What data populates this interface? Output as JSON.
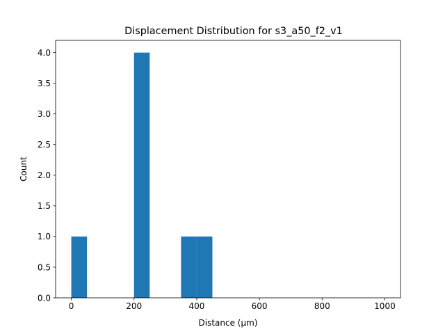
{
  "chart_data": {
    "type": "bar",
    "title": "Displacement Distribution for s3_a50_f2_v1",
    "xlabel": "Distance (μm)",
    "ylabel": "Count",
    "bar_color": "#1f77b4",
    "bins": [
      {
        "x0": 0,
        "x1": 50,
        "count": 1
      },
      {
        "x0": 50,
        "x1": 100,
        "count": 0
      },
      {
        "x0": 100,
        "x1": 150,
        "count": 0
      },
      {
        "x0": 150,
        "x1": 200,
        "count": 0
      },
      {
        "x0": 200,
        "x1": 250,
        "count": 4
      },
      {
        "x0": 250,
        "x1": 300,
        "count": 0
      },
      {
        "x0": 300,
        "x1": 350,
        "count": 0
      },
      {
        "x0": 350,
        "x1": 400,
        "count": 1
      },
      {
        "x0": 400,
        "x1": 450,
        "count": 1
      },
      {
        "x0": 450,
        "x1": 500,
        "count": 0
      },
      {
        "x0": 500,
        "x1": 550,
        "count": 0
      },
      {
        "x0": 550,
        "x1": 600,
        "count": 0
      },
      {
        "x0": 600,
        "x1": 650,
        "count": 0
      },
      {
        "x0": 650,
        "x1": 700,
        "count": 0
      },
      {
        "x0": 700,
        "x1": 750,
        "count": 0
      },
      {
        "x0": 750,
        "x1": 800,
        "count": 0
      },
      {
        "x0": 800,
        "x1": 850,
        "count": 0
      },
      {
        "x0": 850,
        "x1": 900,
        "count": 0
      },
      {
        "x0": 900,
        "x1": 950,
        "count": 0
      },
      {
        "x0": 950,
        "x1": 1000,
        "count": 0
      }
    ],
    "xlim": [
      -50,
      1050
    ],
    "ylim": [
      0,
      4.2
    ],
    "xticks": [
      0,
      200,
      400,
      600,
      800,
      1000
    ],
    "xtick_labels": [
      "0",
      "200",
      "400",
      "600",
      "800",
      "1000"
    ],
    "yticks": [
      0,
      0.5,
      1,
      1.5,
      2,
      2.5,
      3,
      3.5,
      4
    ],
    "ytick_labels": [
      "0.0",
      "0.5",
      "1.0",
      "1.5",
      "2.0",
      "2.5",
      "3.0",
      "3.5",
      "4.0"
    ],
    "grid": false,
    "legend": false
  }
}
